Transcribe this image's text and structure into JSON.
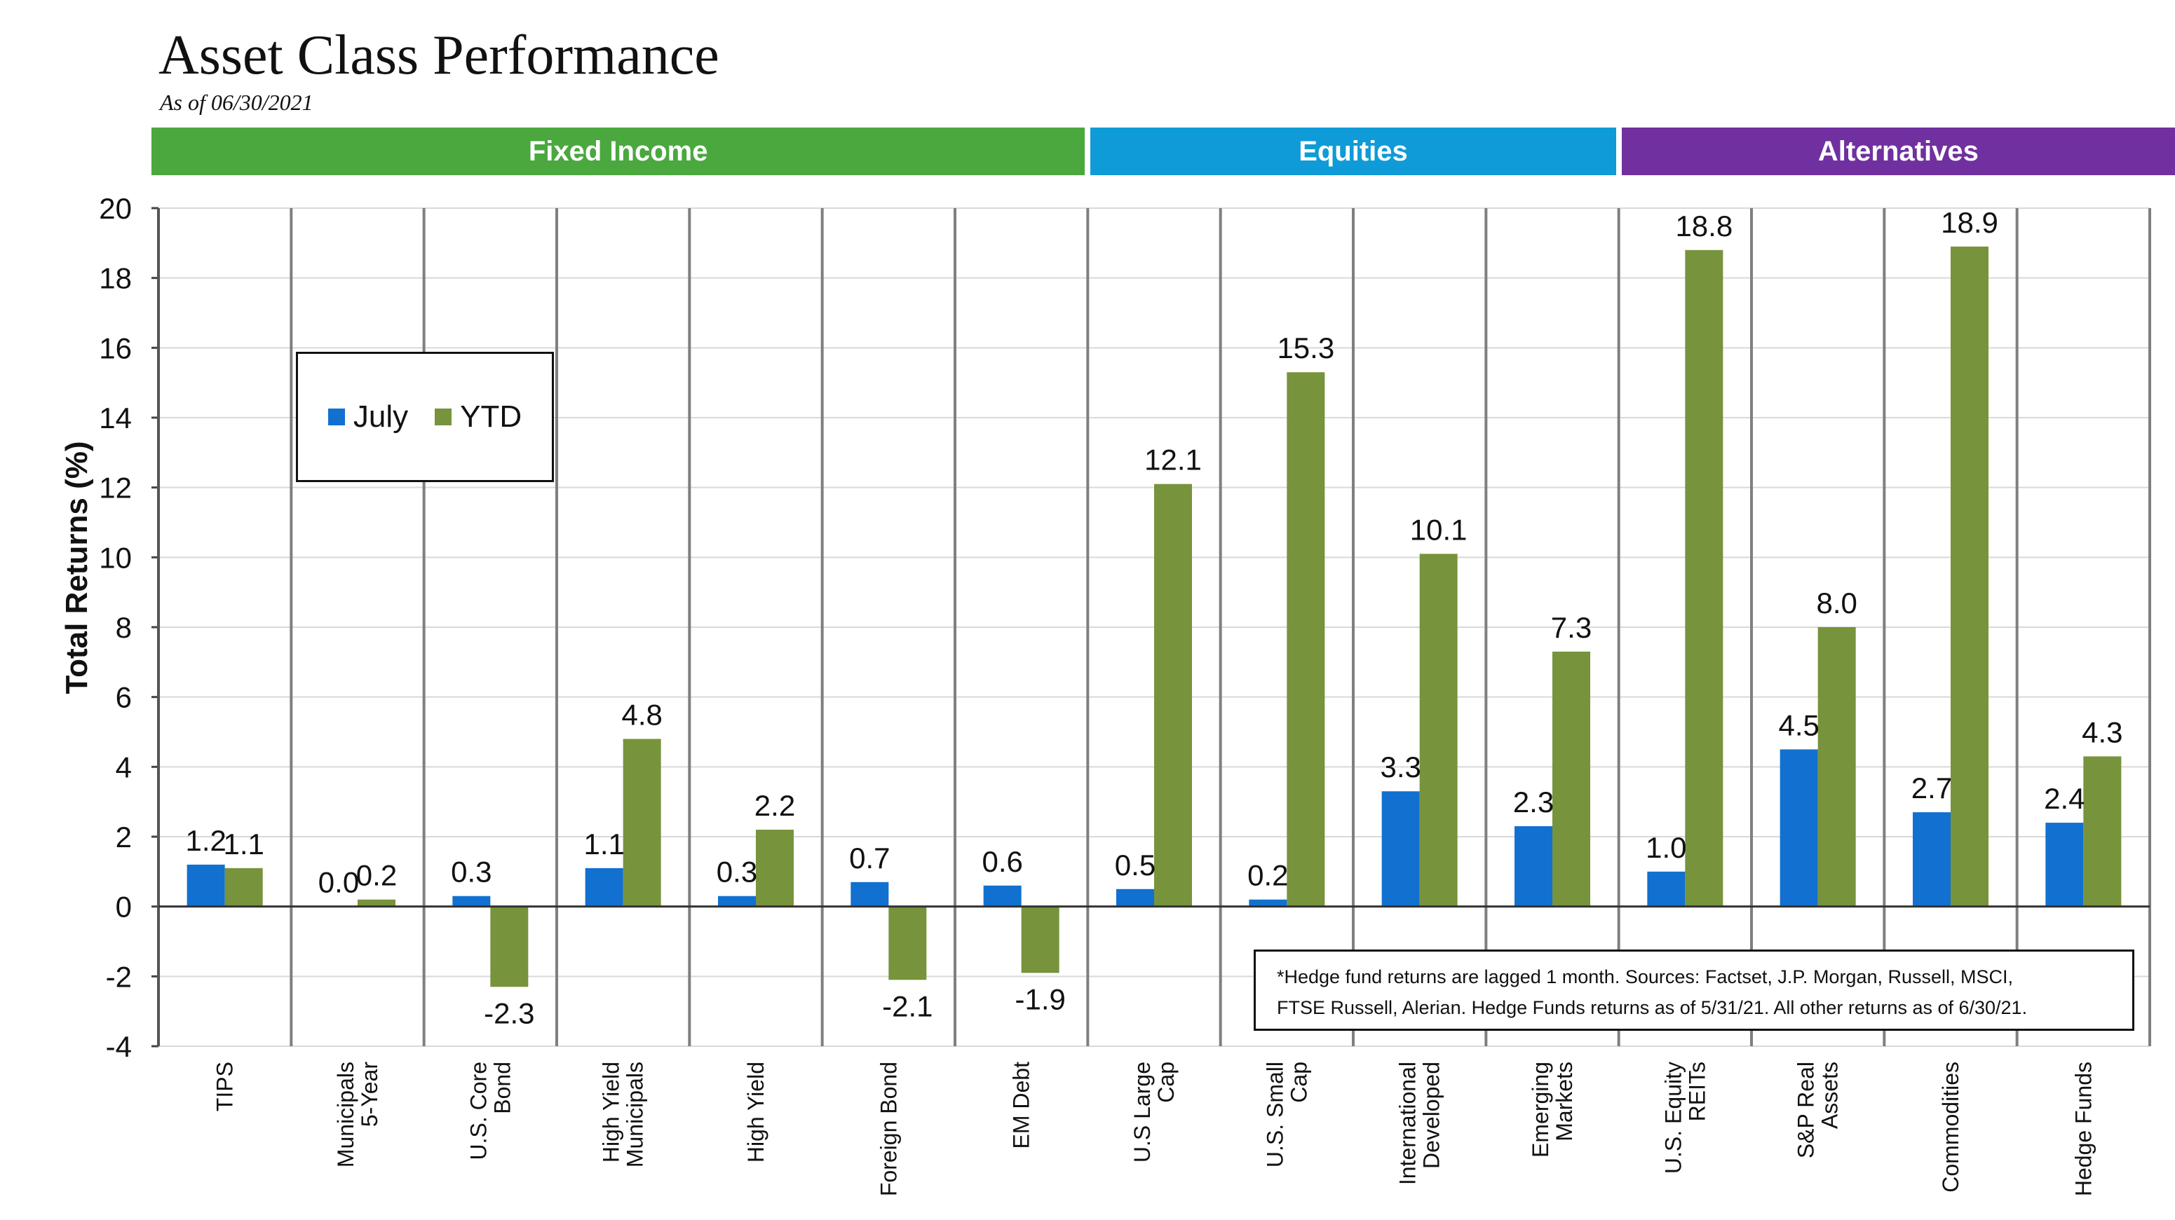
{
  "header": {
    "title": "Asset Class Performance",
    "subtitle": "As of 06/30/2021"
  },
  "groups": [
    {
      "label": "Fixed Income",
      "color": "#4aa83f"
    },
    {
      "label": "Equities",
      "color": "#0f9bd7"
    },
    {
      "label": "Alternatives",
      "color": "#7030a0"
    }
  ],
  "legend": {
    "july": "July",
    "ytd": "YTD"
  },
  "colors": {
    "july": "#1170d0",
    "ytd": "#77933c"
  },
  "footnote": {
    "line1": "*Hedge fund returns are lagged 1 month.  Sources:  Factset, J.P. Morgan, Russell, MSCI,",
    "line2": "FTSE Russell, Alerian.  Hedge Funds returns as of 5/31/21.  All other returns as of 6/30/21."
  },
  "chart_data": {
    "type": "bar",
    "title": "Asset Class Performance",
    "xlabel": "",
    "ylabel": "Total Returns (%)",
    "ylim": [
      -4,
      20
    ],
    "yticks": [
      -4,
      -2,
      0,
      2,
      4,
      6,
      8,
      10,
      12,
      14,
      16,
      18,
      20
    ],
    "categories": [
      [
        "TIPS"
      ],
      [
        "Municipals",
        "5-Year"
      ],
      [
        "U.S. Core",
        "Bond"
      ],
      [
        "High Yield",
        "Municipals"
      ],
      [
        "High Yield"
      ],
      [
        "Foreign Bond"
      ],
      [
        "EM Debt"
      ],
      [
        "U.S Large",
        "Cap"
      ],
      [
        "U.S. Small",
        "Cap"
      ],
      [
        "International",
        "Developed"
      ],
      [
        "Emerging",
        "Markets"
      ],
      [
        "U.S. Equity",
        "REITs"
      ],
      [
        "S&P Real",
        "Assets"
      ],
      [
        "Commodities"
      ],
      [
        "Hedge Funds"
      ]
    ],
    "series": [
      {
        "name": "July",
        "values": [
          1.2,
          0.0,
          0.3,
          1.1,
          0.3,
          0.7,
          0.6,
          0.5,
          0.2,
          3.3,
          2.3,
          1.0,
          4.5,
          2.7,
          2.4
        ],
        "labels": [
          "1.2",
          "0.0",
          "0.3",
          "1.1",
          "0.3",
          "0.7",
          "0.6",
          "0.5",
          "0.2",
          "3.3",
          "2.3",
          "1.0",
          "4.5",
          "2.7",
          "2.4"
        ]
      },
      {
        "name": "YTD",
        "values": [
          1.1,
          0.2,
          -2.3,
          4.8,
          2.2,
          -2.1,
          -1.9,
          12.1,
          15.3,
          10.1,
          7.3,
          18.8,
          8.0,
          18.9,
          4.3
        ],
        "labels": [
          "1.1",
          "0.2",
          "-2.3",
          "4.8",
          "2.2",
          "-2.1",
          "-1.9",
          "12.1",
          "15.3",
          "10.1",
          "7.3",
          "18.8",
          "8.0",
          "18.9",
          "4.3"
        ]
      }
    ],
    "group_spans": [
      {
        "group": "Fixed Income",
        "count": 7
      },
      {
        "group": "Equities",
        "count": 4
      },
      {
        "group": "Alternatives",
        "count": 4
      }
    ],
    "grid": true,
    "legend_position": "upper-left"
  }
}
